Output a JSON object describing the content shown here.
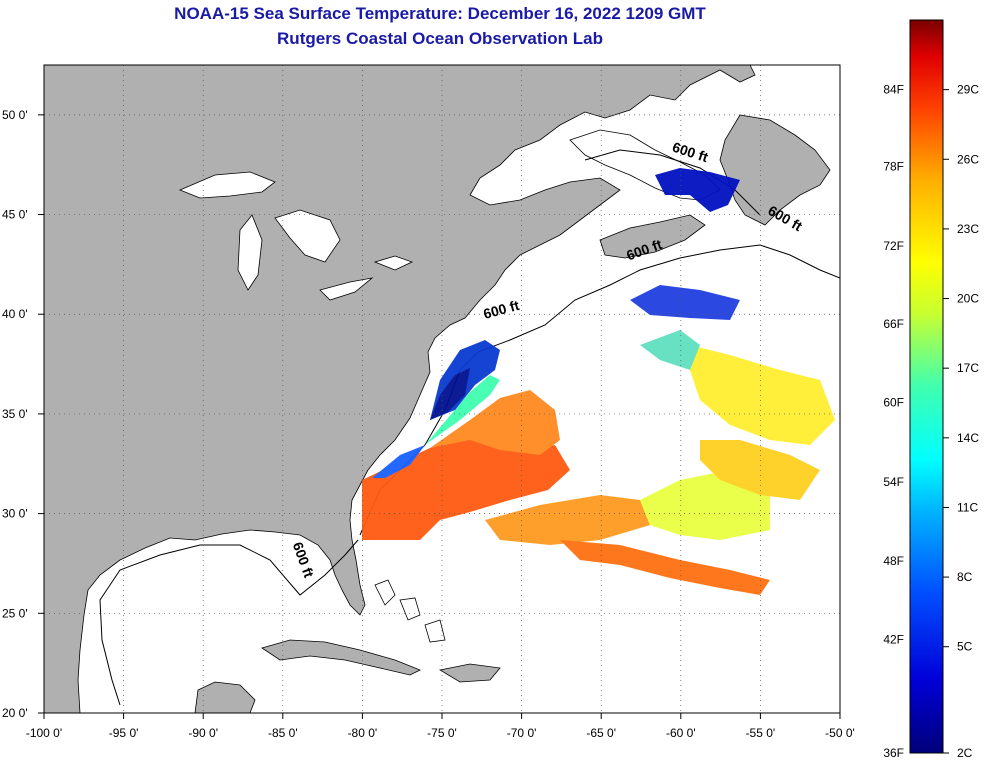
{
  "title": {
    "line1": "NOAA-15 Sea Surface Temperature:  December 16, 2022 1209 GMT",
    "line2": "Rutgers Coastal Ocean Observation Lab"
  },
  "map": {
    "lon_range": [
      -100,
      -50
    ],
    "lat_range": [
      20,
      52.5
    ],
    "lon_ticks": [
      {
        "value": -100,
        "label": "-100 0'"
      },
      {
        "value": -95,
        "label": "-95 0'"
      },
      {
        "value": -90,
        "label": "-90 0'"
      },
      {
        "value": -85,
        "label": "-85 0'"
      },
      {
        "value": -80,
        "label": "-80 0'"
      },
      {
        "value": -75,
        "label": "-75 0'"
      },
      {
        "value": -70,
        "label": "-70 0'"
      },
      {
        "value": -65,
        "label": "-65 0'"
      },
      {
        "value": -60,
        "label": "-60 0'"
      },
      {
        "value": -55,
        "label": "-55 0'"
      },
      {
        "value": -50,
        "label": "-50 0'"
      }
    ],
    "lat_ticks": [
      {
        "value": 50,
        "label": "50 0'"
      },
      {
        "value": 45,
        "label": "45 0'"
      },
      {
        "value": 40,
        "label": "40 0'"
      },
      {
        "value": 35,
        "label": "35 0'"
      },
      {
        "value": 30,
        "label": "30 0'"
      },
      {
        "value": 25,
        "label": "25 0'"
      },
      {
        "value": 20,
        "label": "20 0'"
      }
    ],
    "contour_labels": [
      {
        "text": "600 ft",
        "lon": -59.5,
        "lat": 47.9,
        "rot": 18
      },
      {
        "text": "600 ft",
        "lon": -53.6,
        "lat": 44.6,
        "rot": 30
      },
      {
        "text": "600 ft",
        "lon": -62.2,
        "lat": 43.0,
        "rot": -20
      },
      {
        "text": "600 ft",
        "lon": -71.2,
        "lat": 40.0,
        "rot": -15
      },
      {
        "text": "600 ft",
        "lon": -84.0,
        "lat": 27.6,
        "rot": 70
      }
    ],
    "land_color": "#b0b0b0",
    "water_color": "#ffffff"
  },
  "colorbar": {
    "f_labels": [
      {
        "label": "84F",
        "t": 0.905
      },
      {
        "label": "78F",
        "t": 0.8
      },
      {
        "label": "72F",
        "t": 0.692
      },
      {
        "label": "66F",
        "t": 0.585
      },
      {
        "label": "60F",
        "t": 0.478
      },
      {
        "label": "54F",
        "t": 0.37
      },
      {
        "label": "48F",
        "t": 0.262
      },
      {
        "label": "42F",
        "t": 0.155
      },
      {
        "label": "36F",
        "t": 0.0
      }
    ],
    "c_labels": [
      {
        "label": "29C",
        "t": 0.905
      },
      {
        "label": "26C",
        "t": 0.81
      },
      {
        "label": "23C",
        "t": 0.715
      },
      {
        "label": "20C",
        "t": 0.62
      },
      {
        "label": "17C",
        "t": 0.525
      },
      {
        "label": "14C",
        "t": 0.43
      },
      {
        "label": "11C",
        "t": 0.335
      },
      {
        "label": "8C",
        "t": 0.24
      },
      {
        "label": "5C",
        "t": 0.145
      },
      {
        "label": "2C",
        "t": 0.0
      }
    ]
  }
}
